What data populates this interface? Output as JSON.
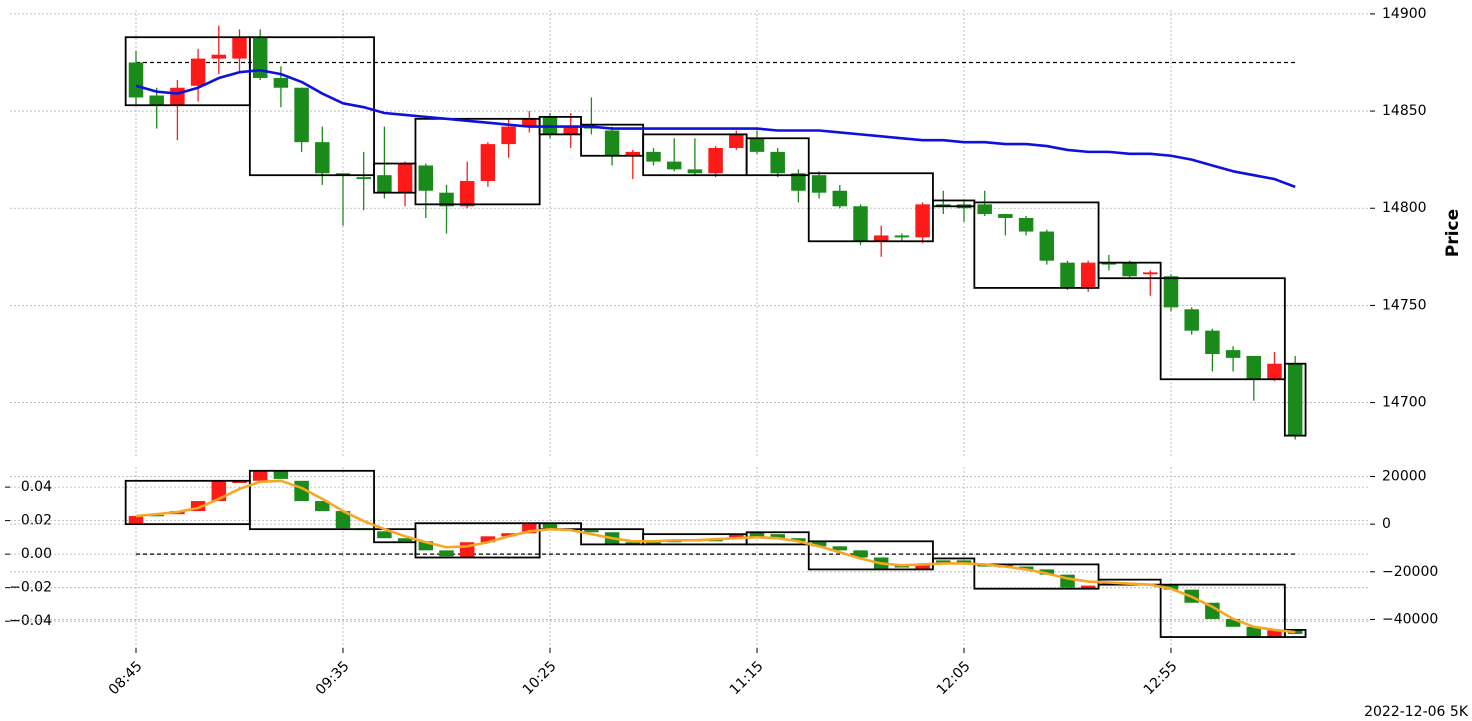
{
  "chart_data": {
    "type": "candlestick",
    "footnote": "2022-12-06 5K",
    "up_color": "#ff1a1a",
    "down_color": "#1a8a1a",
    "box_color": "#000000",
    "grid": true,
    "categories": [
      "08:45",
      null,
      null,
      null,
      null,
      null,
      null,
      null,
      null,
      null,
      "09:35",
      null,
      null,
      null,
      null,
      null,
      null,
      null,
      null,
      null,
      "10:25",
      null,
      null,
      null,
      null,
      null,
      null,
      null,
      null,
      null,
      "11:15",
      null,
      null,
      null,
      null,
      null,
      null,
      null,
      null,
      null,
      "12:05",
      null,
      null,
      null,
      null,
      null,
      null,
      null,
      null,
      null,
      "12:55",
      null,
      null,
      null,
      null,
      null,
      null
    ],
    "panels": [
      {
        "ylabel": "Price",
        "ylim": [
          14672,
          14902
        ],
        "yticks": [
          14700,
          14750,
          14800,
          14850,
          14900
        ],
        "open": [
          14875,
          14858,
          14853,
          14863,
          14877,
          14877,
          14888,
          14867,
          14862,
          14834,
          14818,
          14816,
          14817,
          14808,
          14822,
          14808,
          14801,
          14814,
          14833,
          14842,
          14847,
          14838,
          14842,
          14840,
          14827,
          14829,
          14824,
          14820,
          14818,
          14831,
          14836,
          14829,
          14818,
          14817,
          14809,
          14801,
          14783,
          14786,
          14785,
          14802,
          14802,
          14802,
          14797,
          14795,
          14788,
          14772,
          14759,
          14772,
          14772,
          14766,
          14765,
          14748,
          14737,
          14727,
          14724,
          14712,
          14720
        ],
        "high": [
          14881,
          14862,
          14866,
          14882,
          14894,
          14892,
          14892,
          14873,
          14862,
          14842,
          14818,
          14829,
          14842,
          14824,
          14823,
          14812,
          14824,
          14834,
          14846,
          14850,
          14849,
          14849,
          14857,
          14842,
          14830,
          14831,
          14836,
          14836,
          14832,
          14840,
          14840,
          14831,
          14820,
          14819,
          14812,
          14802,
          14791,
          14787,
          14803,
          14809,
          14804,
          14809,
          14797,
          14796,
          14789,
          14773,
          14773,
          14776,
          14773,
          14768,
          14766,
          14749,
          14738,
          14729,
          14724,
          14726,
          14724
        ],
        "low": [
          14853,
          14841,
          14835,
          14855,
          14869,
          14870,
          14866,
          14852,
          14829,
          14812,
          14791,
          14799,
          14805,
          14801,
          14795,
          14787,
          14800,
          14811,
          14826,
          14839,
          14836,
          14831,
          14838,
          14822,
          14815,
          14822,
          14819,
          14817,
          14816,
          14830,
          14828,
          14816,
          14803,
          14805,
          14800,
          14781,
          14775,
          14783,
          14782,
          14797,
          14793,
          14796,
          14786,
          14786,
          14771,
          14758,
          14757,
          14768,
          14764,
          14755,
          14747,
          14735,
          14716,
          14716,
          14701,
          14711,
          14681
        ],
        "close": [
          14857,
          14853,
          14862,
          14877,
          14879,
          14888,
          14867,
          14862,
          14834,
          14818,
          14817,
          14815,
          14808,
          14823,
          14809,
          14801,
          14814,
          14833,
          14842,
          14846,
          14838,
          14842,
          14841,
          14827,
          14829,
          14824,
          14820,
          14818,
          14831,
          14838,
          14829,
          14818,
          14809,
          14808,
          14801,
          14783,
          14786,
          14785,
          14802,
          14801,
          14800,
          14797,
          14795,
          14788,
          14773,
          14759,
          14772,
          14771,
          14765,
          14767,
          14749,
          14737,
          14725,
          14723,
          14712,
          14720,
          14683
        ],
        "lines": [
          {
            "color": "#1010dd",
            "values": [
              14863,
              14860,
              14859,
              14862,
              14867,
              14870,
              14871,
              14869,
              14865,
              14859,
              14854,
              14852,
              14849,
              14848,
              14847,
              14846,
              14845,
              14844,
              14843,
              14842,
              14842,
              14842,
              14842,
              14841,
              14841,
              14841,
              14841,
              14841,
              14841,
              14841,
              14841,
              14840,
              14840,
              14840,
              14839,
              14838,
              14837,
              14836,
              14835,
              14835,
              14834,
              14834,
              14833,
              14833,
              14832,
              14830,
              14829,
              14829,
              14828,
              14828,
              14827,
              14825,
              14822,
              14819,
              14817,
              14815,
              14811
            ]
          }
        ],
        "hline": 14875,
        "boxes": [
          {
            "start": 0,
            "end": 5,
            "high": 14888,
            "low": 14853
          },
          {
            "start": 6,
            "end": 11,
            "high": 14888,
            "low": 14817
          },
          {
            "start": 12,
            "end": 13,
            "high": 14823,
            "low": 14808
          },
          {
            "start": 14,
            "end": 19,
            "high": 14846,
            "low": 14802
          },
          {
            "start": 20,
            "end": 21,
            "high": 14847,
            "low": 14838
          },
          {
            "start": 22,
            "end": 24,
            "high": 14843,
            "low": 14827
          },
          {
            "start": 25,
            "end": 29,
            "high": 14838,
            "low": 14817
          },
          {
            "start": 30,
            "end": 32,
            "high": 14836,
            "low": 14817
          },
          {
            "start": 33,
            "end": 38,
            "high": 14818,
            "low": 14783
          },
          {
            "start": 39,
            "end": 40,
            "high": 14804,
            "low": 14801
          },
          {
            "start": 41,
            "end": 46,
            "high": 14803,
            "low": 14759
          },
          {
            "start": 47,
            "end": 49,
            "high": 14772,
            "low": 14764
          },
          {
            "start": 50,
            "end": 55,
            "high": 14764,
            "low": 14712
          },
          {
            "start": 56,
            "end": 56,
            "high": 14720,
            "low": 14683
          }
        ]
      },
      {
        "axis": "y2",
        "ylim": [
          -0.056,
          0.052
        ],
        "yticks": [
          {
            "value": -0.04,
            "label": "−0.04"
          },
          {
            "value": -0.02,
            "label": "−0.02"
          },
          {
            "value": 0,
            "label": "0.00"
          },
          0.02,
          0.04
        ],
        "y2lim": [
          -52000,
          24000
        ],
        "y2ticks": [
          {
            "value": -40000,
            "label": "−40000"
          },
          {
            "value": -20000,
            "label": "−20000"
          },
          0,
          20000
        ],
        "open": [
          400,
          3800,
          4200,
          5500,
          9700,
          17300,
          18200,
          22400,
          18200,
          9700,
          5500,
          -1700,
          -3000,
          -5900,
          -7200,
          -11000,
          -14000,
          -7600,
          -5100,
          -3800,
          400,
          -2100,
          -2500,
          -3400,
          -7600,
          -7600,
          -6800,
          -7200,
          -6300,
          -6300,
          -3400,
          -4200,
          -5900,
          -7200,
          -9300,
          -11000,
          -14000,
          -16900,
          -18600,
          -15200,
          -15200,
          -16500,
          -16900,
          -17800,
          -19000,
          -21200,
          -27100,
          -24900,
          -25000,
          -25200,
          -25400,
          -27500,
          -33000,
          -39800,
          -43100,
          -47400,
          -44400
        ],
        "close": [
          3400,
          3400,
          5500,
          9700,
          18200,
          18200,
          22400,
          19000,
          9700,
          5500,
          -1700,
          -2500,
          -5900,
          -7200,
          -11000,
          -13500,
          -7600,
          -5100,
          -3800,
          400,
          -2100,
          -2500,
          -3400,
          -8500,
          -8500,
          -8500,
          -7600,
          -6300,
          -7200,
          -4200,
          -5500,
          -6300,
          -7200,
          -9300,
          -11000,
          -14000,
          -18600,
          -18200,
          -16900,
          -16900,
          -16100,
          -17800,
          -18200,
          -19000,
          -21200,
          -26600,
          -25800,
          -25200,
          -25300,
          -25500,
          -27500,
          -33000,
          -39800,
          -43100,
          -47400,
          -44400,
          -46100
        ],
        "lines": [
          {
            "color": "#f5a623",
            "values": [
              3400,
              4200,
              5100,
              6800,
              10600,
              14800,
              17800,
              18200,
              15200,
              10600,
              5500,
              1300,
              -2100,
              -5100,
              -7600,
              -9700,
              -9300,
              -7600,
              -5100,
              -3000,
              -2100,
              -2500,
              -4200,
              -5900,
              -7200,
              -7200,
              -6800,
              -6800,
              -6300,
              -5900,
              -5500,
              -5900,
              -7200,
              -9300,
              -11800,
              -14400,
              -16500,
              -17300,
              -16900,
              -16500,
              -16500,
              -16900,
              -17800,
              -19000,
              -20700,
              -22800,
              -24100,
              -24500,
              -25000,
              -25400,
              -27100,
              -30500,
              -34700,
              -39800,
              -43100,
              -44400,
              -45300
            ]
          }
        ],
        "hline": 0,
        "boxes": [
          {
            "start": 0,
            "end": 5,
            "high": 18200,
            "low": 0
          },
          {
            "start": 6,
            "end": 11,
            "high": 22400,
            "low": -2100
          },
          {
            "start": 12,
            "end": 13,
            "high": -2100,
            "low": -7600
          },
          {
            "start": 14,
            "end": 19,
            "high": 400,
            "low": -14000
          },
          {
            "start": 20,
            "end": 21,
            "high": 400,
            "low": -2100
          },
          {
            "start": 22,
            "end": 24,
            "high": -2100,
            "low": -8500
          },
          {
            "start": 25,
            "end": 29,
            "high": -4200,
            "low": -8500
          },
          {
            "start": 30,
            "end": 32,
            "high": -3400,
            "low": -8500
          },
          {
            "start": 33,
            "end": 38,
            "high": -7200,
            "low": -19000
          },
          {
            "start": 39,
            "end": 40,
            "high": -14400,
            "low": -16500
          },
          {
            "start": 41,
            "end": 46,
            "high": -16900,
            "low": -27100
          },
          {
            "start": 47,
            "end": 49,
            "high": -23300,
            "low": -25400
          },
          {
            "start": 50,
            "end": 55,
            "high": -25400,
            "low": -47400
          },
          {
            "start": 56,
            "end": 56,
            "high": -44400,
            "low": -47400
          }
        ]
      }
    ]
  }
}
